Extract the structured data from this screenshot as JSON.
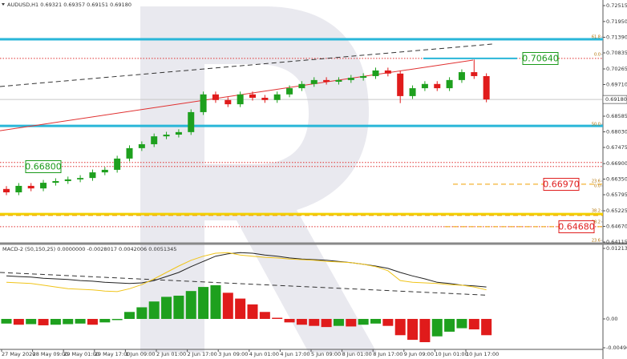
{
  "chart_data": [
    {
      "type": "candlestick",
      "title": "AUDUSD,H1  0.69321 0.69357 0.69151 0.69180",
      "x_labels": [
        "27 May 2020",
        "28 May 09:00",
        "29 May 01:00",
        "29 May 17:00",
        "1 Jun 09:00",
        "2 Jun 01:00",
        "2 Jun 17:00",
        "3 Jun 09:00",
        "4 Jun 01:00",
        "4 Jun 17:00",
        "5 Jun 09:00",
        "8 Jun 01:00",
        "8 Jun 17:00",
        "9 Jun 09:00",
        "10 Jun 01:00",
        "10 Jun 17:00"
      ],
      "open": [
        0.66,
        0.6588,
        0.6611,
        0.6602,
        0.6622,
        0.6628,
        0.6634,
        0.6639,
        0.6659,
        0.6668,
        0.6708,
        0.6745,
        0.6759,
        0.6787,
        0.6793,
        0.6802,
        0.6873,
        0.6936,
        0.6916,
        0.6901,
        0.6936,
        0.6924,
        0.6916,
        0.6936,
        0.6958,
        0.6973,
        0.6987,
        0.6981,
        0.6987,
        0.6995,
        0.7001,
        0.7021,
        0.701,
        0.693,
        0.6958,
        0.6973,
        0.6958,
        0.6987,
        0.7015,
        0.7001
      ],
      "high": [
        0.661,
        0.6621,
        0.6621,
        0.6632,
        0.6638,
        0.6644,
        0.6649,
        0.6669,
        0.6678,
        0.6718,
        0.6755,
        0.6769,
        0.6797,
        0.6803,
        0.6812,
        0.6883,
        0.6946,
        0.6946,
        0.6926,
        0.6946,
        0.6946,
        0.6934,
        0.6946,
        0.6968,
        0.6983,
        0.6997,
        0.6997,
        0.6997,
        0.7005,
        0.7011,
        0.7031,
        0.7031,
        0.702,
        0.6968,
        0.6983,
        0.6983,
        0.6997,
        0.7025,
        0.706,
        0.7011
      ],
      "low": [
        0.6578,
        0.6578,
        0.6592,
        0.6592,
        0.6612,
        0.6618,
        0.6624,
        0.6629,
        0.6649,
        0.6658,
        0.6698,
        0.6735,
        0.6749,
        0.6777,
        0.6783,
        0.6792,
        0.6863,
        0.6906,
        0.6891,
        0.6891,
        0.6914,
        0.6906,
        0.6906,
        0.6926,
        0.6948,
        0.6963,
        0.6971,
        0.6971,
        0.6977,
        0.6985,
        0.6991,
        0.7,
        0.6905,
        0.692,
        0.6948,
        0.6948,
        0.6948,
        0.6977,
        0.6991,
        0.6908
      ],
      "close": [
        0.6588,
        0.6611,
        0.6602,
        0.6622,
        0.6628,
        0.6634,
        0.6639,
        0.6659,
        0.6668,
        0.6708,
        0.6745,
        0.6759,
        0.6787,
        0.6793,
        0.6802,
        0.6873,
        0.6936,
        0.6916,
        0.6901,
        0.6936,
        0.6924,
        0.6916,
        0.6936,
        0.6958,
        0.6973,
        0.6987,
        0.6981,
        0.6987,
        0.6995,
        0.7001,
        0.7021,
        0.701,
        0.693,
        0.6958,
        0.6973,
        0.6958,
        0.6987,
        0.7015,
        0.7001,
        0.6918
      ],
      "up_color": "#1ea01e",
      "down_color": "#e01b1b",
      "ylim": [
        0.64087,
        0.72714
      ],
      "yticks": [
        0.72515,
        {
          "value": 0.7195,
          "label": "0.71950"
        },
        {
          "value": 0.7139,
          "label": "0.71390"
        },
        0.70835,
        0.70265,
        {
          "value": 0.6971,
          "label": "0.69710"
        },
        0.68585,
        {
          "value": 0.6803,
          "label": "0.68030"
        },
        0.67475,
        {
          "value": 0.669,
          "label": "0.66900"
        },
        {
          "value": 0.6635,
          "label": "0.66350"
        },
        0.65795,
        0.65225,
        {
          "value": 0.6467,
          "label": "0.64670"
        },
        0.64115
      ],
      "last_price": {
        "value": 0.6918,
        "label": "0.69180"
      },
      "levels": [
        {
          "value": 0.7132,
          "color": "#29b6d8",
          "style": "thick"
        },
        {
          "value": 0.6824,
          "color": "#29b6d8",
          "style": "thick"
        },
        {
          "value": 0.6511,
          "color": "#f2d000",
          "style": "thick"
        },
        {
          "value": 0.7064,
          "color": "#e03030",
          "style": "dotted"
        },
        {
          "value": 0.6694,
          "color": "#e03030",
          "style": "dotted"
        },
        {
          "value": 0.668,
          "color": "#e03030",
          "style": "dotted"
        },
        {
          "value": 0.6466,
          "color": "#e03030",
          "style": "dotted"
        },
        {
          "value": 0.7064,
          "color": "#29b6d8",
          "style": "solid"
        },
        {
          "value": 0.6617,
          "color": "#f0a000",
          "style": "dashed"
        },
        {
          "value": 0.6466,
          "color": "#f0a000",
          "style": "dashed"
        },
        {
          "value": 0.6506,
          "color": "#f0a000",
          "style": "dashed"
        }
      ],
      "trendlines": [
        {
          "color": "#333333",
          "style": "dashed",
          "from": 0.6964,
          "to": 0.7115
        },
        {
          "color": "#e03030",
          "style": "solid",
          "from": 0.6807,
          "to": 0.7058
        }
      ],
      "fib_labels": [
        {
          "label": "61.8",
          "value": 0.714
        },
        {
          "label": "0.0",
          "value": 0.7078
        },
        {
          "label": "50.0",
          "value": 0.683
        },
        {
          "label": "23.6",
          "value": 0.6628
        },
        {
          "label": "0.0",
          "value": 0.6611
        },
        {
          "label": "38.2",
          "value": 0.6523
        },
        {
          "label": "38.2",
          "value": 0.6483
        },
        {
          "label": "23.6",
          "value": 0.6417
        }
      ],
      "annotations": [
        {
          "label": "0.70640",
          "color": "#1a9a1a"
        },
        {
          "label": "0.66800",
          "color": "#1a9a1a"
        },
        {
          "label": "0.66970",
          "color": "#e02020"
        },
        {
          "label": "0.64680",
          "color": "#e02020"
        }
      ]
    },
    {
      "type": "macd",
      "title": "MACD-2 (50,150,25) 0.0000000 -0.0028017 0.0042006 0.0051345",
      "ylim": [
        -0.004968,
        0.0121344
      ],
      "yticks": [
        0.0121344,
        {
          "value": 0,
          "label": "0.00"
        },
        -0.004968
      ],
      "up_color": "#1ea01e",
      "down_color": "#e01b1b",
      "histogram": [
        -0.0008,
        -0.001,
        -0.0009,
        -0.0011,
        -0.001,
        -0.0009,
        -0.0008,
        -0.001,
        -0.0006,
        -0.0002,
        0.0012,
        0.002,
        0.003,
        0.0038,
        0.004,
        0.0048,
        0.0055,
        0.0058,
        0.0045,
        0.0035,
        0.0025,
        0.0012,
        0.0002,
        -0.0006,
        -0.001,
        -0.0012,
        -0.0014,
        -0.0012,
        -0.0013,
        -0.001,
        -0.0008,
        -0.0012,
        -0.0028,
        -0.0036,
        -0.004,
        -0.003,
        -0.0022,
        -0.0016,
        -0.0018,
        -0.0028
      ],
      "series": [
        {
          "color": "#222222",
          "values": [
            0.0074,
            0.0073,
            0.0072,
            0.007,
            0.0069,
            0.0068,
            0.0066,
            0.0065,
            0.0063,
            0.0062,
            0.0061,
            0.0062,
            0.0066,
            0.0073,
            0.008,
            0.009,
            0.0099,
            0.0108,
            0.0112,
            0.0114,
            0.0113,
            0.011,
            0.0108,
            0.0105,
            0.0103,
            0.0102,
            0.0101,
            0.0099,
            0.0097,
            0.0094,
            0.0091,
            0.0087,
            0.008,
            0.0074,
            0.0069,
            0.0063,
            0.0061,
            0.0058,
            0.0057,
            0.0055
          ]
        },
        {
          "color": "#f0c419",
          "values": [
            0.0063,
            0.0062,
            0.0061,
            0.0058,
            0.0055,
            0.0052,
            0.0051,
            0.005,
            0.0048,
            0.0047,
            0.0052,
            0.0059,
            0.0069,
            0.008,
            0.0091,
            0.0101,
            0.0108,
            0.0113,
            0.0114,
            0.011,
            0.0108,
            0.0106,
            0.0105,
            0.0103,
            0.0102,
            0.0101,
            0.0099,
            0.0098,
            0.0097,
            0.0094,
            0.009,
            0.0083,
            0.0066,
            0.0063,
            0.0062,
            0.0061,
            0.0059,
            0.0058,
            0.0055,
            0.005
          ]
        }
      ],
      "trendline": {
        "color": "#333333",
        "style": "dashed",
        "from": 0.008,
        "to": 0.0041
      }
    }
  ]
}
